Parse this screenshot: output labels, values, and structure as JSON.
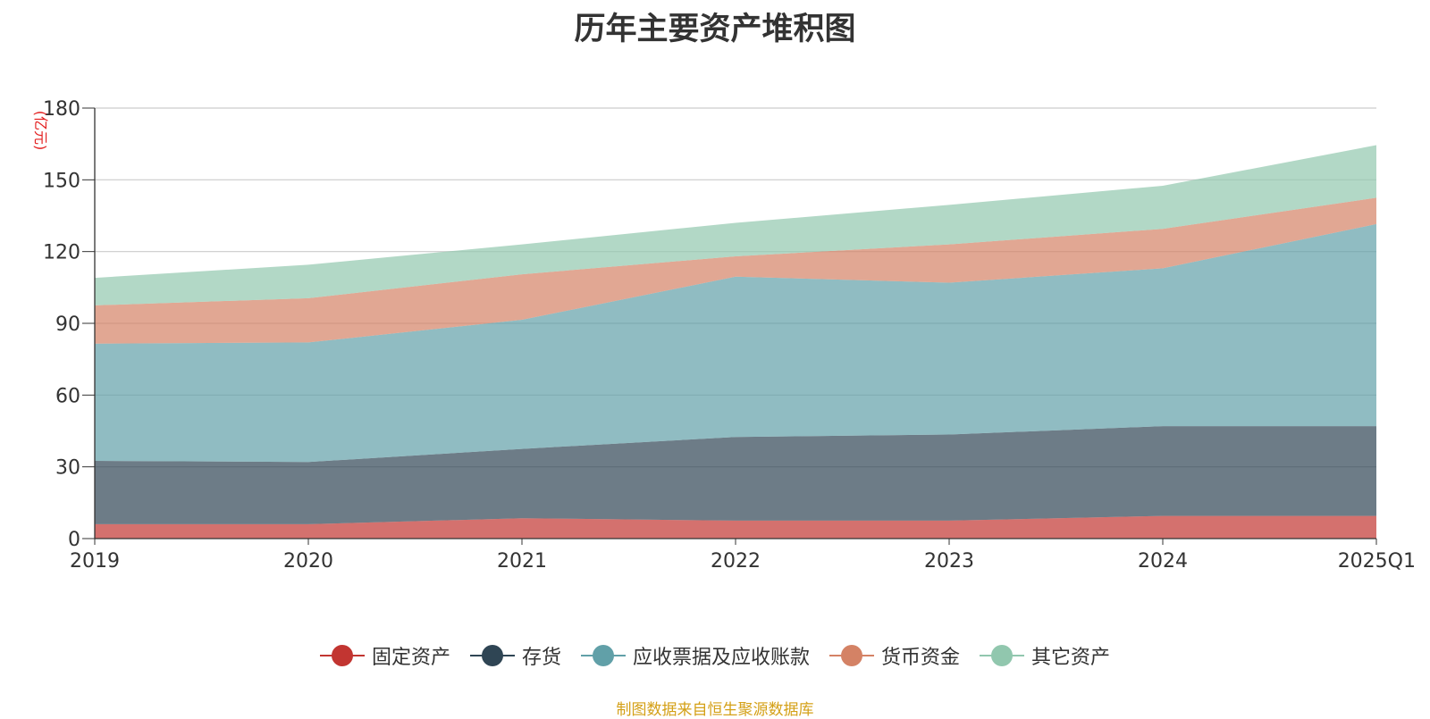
{
  "chart_data": {
    "type": "area",
    "stacked": true,
    "title": "历年主要资产堆积图",
    "ylabel": "(亿元)",
    "xlabel": "",
    "categories": [
      "2019",
      "2020",
      "2021",
      "2022",
      "2023",
      "2024",
      "2025Q1"
    ],
    "ylim": [
      0,
      180
    ],
    "yticks": [
      "0",
      "30",
      "60",
      "90",
      "120",
      "150",
      "180"
    ],
    "grid": true,
    "legend_position": "bottom",
    "series": [
      {
        "name": "固定资产",
        "color": "#c23531",
        "values": [
          6,
          6,
          8.5,
          7.5,
          7.5,
          9.5,
          9.5
        ]
      },
      {
        "name": "存货",
        "color": "#2f4554",
        "values": [
          26.5,
          26,
          29,
          35,
          36,
          37.5,
          37.5
        ]
      },
      {
        "name": "应收票据及应收账款",
        "color": "#61a0a8",
        "values": [
          49,
          50,
          54,
          67,
          63.5,
          66,
          84.5
        ]
      },
      {
        "name": "货币资金",
        "color": "#d48265",
        "values": [
          16,
          18.5,
          19,
          8.5,
          16,
          16.5,
          11
        ]
      },
      {
        "name": "其它资产",
        "color": "#91c7ae",
        "values": [
          11.5,
          14,
          12.5,
          14,
          16.5,
          18,
          22
        ]
      }
    ]
  },
  "footer": {
    "source": "制图数据来自恒生聚源数据库"
  }
}
